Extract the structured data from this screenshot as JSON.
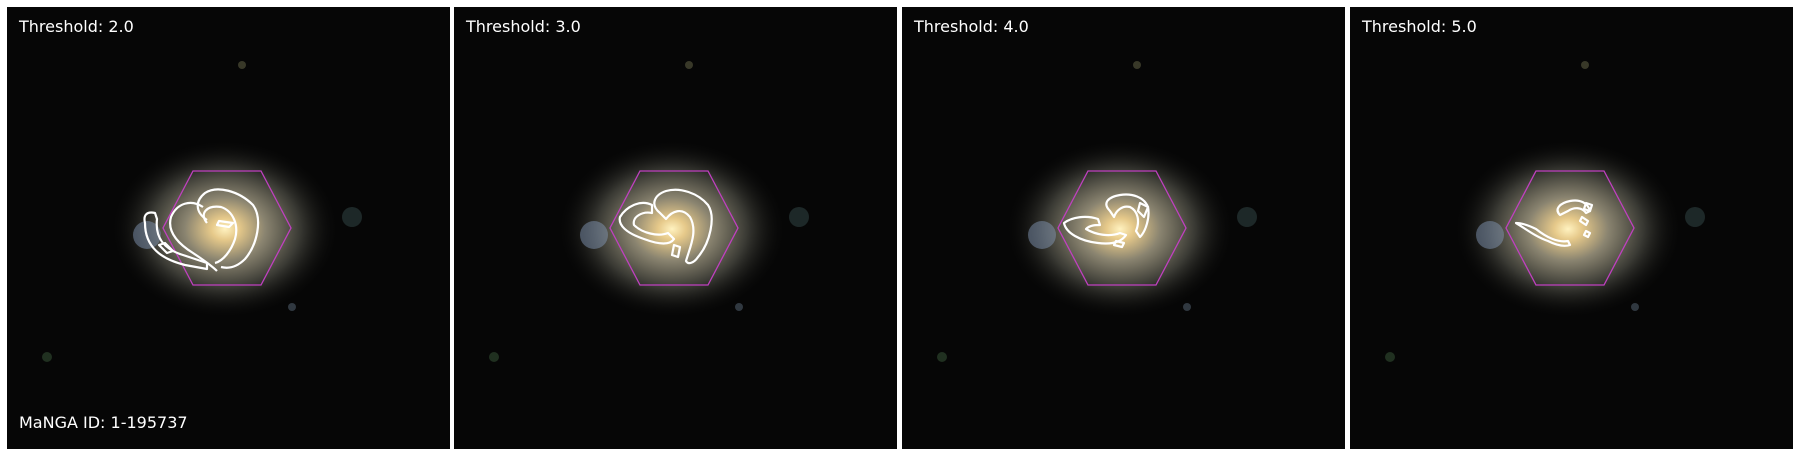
{
  "figure": {
    "manga_id_label": "MaNGA ID: 1-195737",
    "panels": [
      {
        "threshold_label": "Threshold: 2.0"
      },
      {
        "threshold_label": "Threshold: 3.0"
      },
      {
        "threshold_label": "Threshold: 4.0"
      },
      {
        "threshold_label": "Threshold: 5.0"
      }
    ]
  },
  "colors": {
    "ifu_hexagon": "#c040c0",
    "contour": "#ffffff",
    "galaxy_core": "#f2d28a",
    "background": "#050505"
  }
}
